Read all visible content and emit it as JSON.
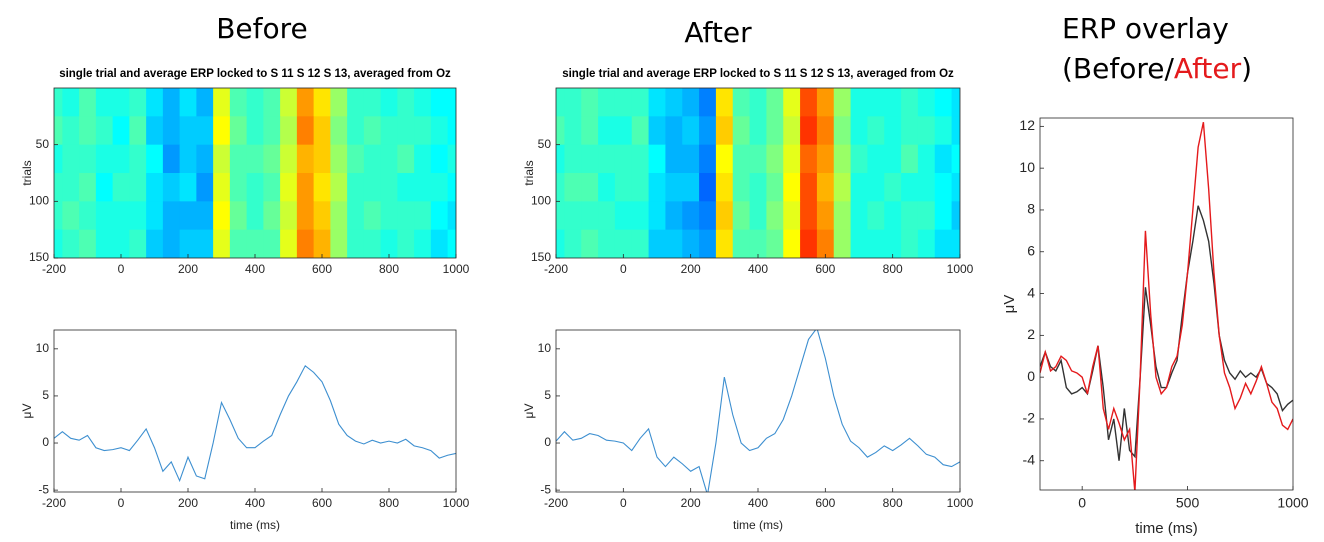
{
  "headings": {
    "before": "Before",
    "after": "After",
    "overlay": [
      "ERP overlay",
      "(Before/",
      "After",
      ")"
    ]
  },
  "chart_data": [
    {
      "type": "heatmap",
      "title": "single trial and average ERP locked to S 11 S 12 S 13, averaged from Oz",
      "ylabel": "trials",
      "x": [
        -200,
        -150,
        -100,
        -50,
        0,
        50,
        100,
        150,
        200,
        250,
        300,
        350,
        400,
        450,
        500,
        550,
        600,
        650,
        700,
        750,
        800,
        850,
        900,
        950,
        1000
      ],
      "y": [
        12.5,
        37.5,
        62.5,
        87.5,
        112.5,
        137.5
      ],
      "values": [
        [
          -3,
          -4,
          -2,
          -4,
          -4,
          -3,
          -6,
          -8,
          -6,
          -8,
          4,
          -2,
          -3,
          -2,
          3,
          9,
          6,
          1,
          -3,
          -3,
          -4,
          -3,
          -4,
          -5,
          -5
        ],
        [
          -2,
          -3,
          -2,
          -3,
          -5,
          -2,
          -7,
          -8,
          -7,
          -7,
          5,
          -1,
          -3,
          -2,
          2,
          10,
          7,
          0,
          -3,
          -2,
          -3,
          -3,
          -3,
          -4,
          -5
        ],
        [
          -4,
          -3,
          -3,
          -4,
          -4,
          -3,
          -5,
          -9,
          -7,
          -8,
          3,
          -2,
          -2,
          -1,
          3,
          8,
          7,
          1,
          -2,
          -3,
          -3,
          -2,
          -4,
          -5,
          -4
        ],
        [
          -3,
          -3,
          -2,
          -5,
          -3,
          -3,
          -6,
          -7,
          -6,
          -9,
          4,
          -2,
          -3,
          -2,
          4,
          9,
          6,
          2,
          -3,
          -3,
          -3,
          -4,
          -4,
          -4,
          -5
        ],
        [
          -3,
          -2,
          -3,
          -4,
          -4,
          -4,
          -6,
          -8,
          -8,
          -8,
          5,
          -1,
          -3,
          -1,
          3,
          9,
          7,
          1,
          -3,
          -2,
          -3,
          -3,
          -3,
          -5,
          -6
        ],
        [
          -4,
          -3,
          -2,
          -4,
          -4,
          -3,
          -7,
          -8,
          -7,
          -7,
          4,
          -2,
          -2,
          -2,
          4,
          10,
          8,
          1,
          -3,
          -3,
          -4,
          -3,
          -4,
          -6,
          -5
        ]
      ],
      "clim": [
        -20,
        20
      ],
      "xlim": [
        -200,
        1000
      ],
      "ylim": [
        150,
        0
      ],
      "xticks": [
        -200,
        0,
        200,
        400,
        600,
        800,
        1000
      ],
      "yticks": [
        50,
        100,
        150
      ]
    },
    {
      "type": "line",
      "xlabel": "time (ms)",
      "ylabel": "μV",
      "x": [
        -200,
        -175,
        -150,
        -125,
        -100,
        -75,
        -50,
        -25,
        0,
        25,
        50,
        75,
        100,
        125,
        150,
        175,
        200,
        225,
        250,
        275,
        300,
        325,
        350,
        375,
        400,
        425,
        450,
        475,
        500,
        525,
        550,
        575,
        600,
        625,
        650,
        675,
        700,
        725,
        750,
        775,
        800,
        825,
        850,
        875,
        900,
        925,
        950,
        975,
        1000
      ],
      "series": [
        {
          "color": "#3d8fd0",
          "values": [
            0.5,
            1.2,
            0.5,
            0.3,
            0.8,
            -0.5,
            -0.8,
            -0.7,
            -0.5,
            -0.8,
            0.3,
            1.5,
            -0.5,
            -3,
            -2,
            -4,
            -1.5,
            -3.5,
            -3.8,
            0,
            4.3,
            2.5,
            0.5,
            -0.5,
            -0.5,
            0.2,
            0.8,
            3,
            5,
            6.5,
            8.2,
            7.5,
            6.5,
            4.5,
            2,
            0.8,
            0.2,
            -0.1,
            0.3,
            0,
            0.2,
            0,
            0.4,
            -0.3,
            -0.5,
            -0.8,
            -1.6,
            -1.3,
            -1.1
          ]
        }
      ],
      "xlim": [
        -200,
        1000
      ],
      "ylim": [
        -5.2,
        12
      ],
      "xticks": [
        -200,
        0,
        200,
        400,
        600,
        800,
        1000
      ],
      "yticks": [
        -5,
        0,
        5,
        10
      ]
    },
    {
      "type": "heatmap",
      "title": "single trial and average ERP locked to S 11 S 12 S 13, averaged from Oz",
      "ylabel": "trials",
      "x": [
        -200,
        -150,
        -100,
        -50,
        0,
        50,
        100,
        150,
        200,
        250,
        300,
        350,
        400,
        450,
        500,
        550,
        600,
        650,
        700,
        750,
        800,
        850,
        900,
        950,
        1000
      ],
      "y": [
        12.5,
        37.5,
        62.5,
        87.5,
        112.5,
        137.5
      ],
      "values": [
        [
          -3,
          -3,
          -2,
          -3,
          -3,
          -3,
          -6,
          -7,
          -8,
          -10,
          6,
          -2,
          -3,
          -1,
          4,
          12,
          9,
          1,
          -4,
          -4,
          -4,
          -3,
          -4,
          -5,
          -6
        ],
        [
          -2,
          -3,
          -2,
          -4,
          -4,
          -2,
          -7,
          -8,
          -7,
          -9,
          7,
          -1,
          -3,
          -1,
          3,
          13,
          10,
          0,
          -4,
          -3,
          -4,
          -3,
          -3,
          -4,
          -6
        ],
        [
          -4,
          -3,
          -3,
          -3,
          -3,
          -3,
          -5,
          -8,
          -8,
          -10,
          5,
          -2,
          -2,
          0,
          4,
          11,
          9,
          1,
          -3,
          -4,
          -4,
          -2,
          -4,
          -6,
          -5
        ],
        [
          -3,
          -2,
          -2,
          -4,
          -3,
          -3,
          -6,
          -7,
          -7,
          -11,
          6,
          -2,
          -3,
          -1,
          5,
          12,
          8,
          2,
          -4,
          -4,
          -3,
          -4,
          -4,
          -5,
          -6
        ],
        [
          -3,
          -3,
          -3,
          -3,
          -4,
          -4,
          -6,
          -8,
          -9,
          -10,
          7,
          -1,
          -3,
          0,
          4,
          12,
          9,
          1,
          -4,
          -3,
          -4,
          -3,
          -3,
          -5,
          -7
        ],
        [
          -4,
          -3,
          -2,
          -3,
          -3,
          -3,
          -7,
          -7,
          -8,
          -9,
          6,
          -2,
          -2,
          -1,
          5,
          13,
          10,
          1,
          -4,
          -4,
          -4,
          -3,
          -4,
          -6,
          -6
        ]
      ],
      "clim": [
        -20,
        20
      ],
      "xlim": [
        -200,
        1000
      ],
      "ylim": [
        150,
        0
      ],
      "xticks": [
        -200,
        0,
        200,
        400,
        600,
        800,
        1000
      ],
      "yticks": [
        50,
        100,
        150
      ]
    },
    {
      "type": "line",
      "xlabel": "time (ms)",
      "ylabel": "μV",
      "x": [
        -200,
        -175,
        -150,
        -125,
        -100,
        -75,
        -50,
        -25,
        0,
        25,
        50,
        75,
        100,
        125,
        150,
        175,
        200,
        225,
        250,
        275,
        300,
        325,
        350,
        375,
        400,
        425,
        450,
        475,
        500,
        525,
        550,
        575,
        600,
        625,
        650,
        675,
        700,
        725,
        750,
        775,
        800,
        825,
        850,
        875,
        900,
        925,
        950,
        975,
        1000
      ],
      "series": [
        {
          "color": "#3d8fd0",
          "values": [
            0.2,
            1.2,
            0.3,
            0.5,
            1,
            0.8,
            0.3,
            0.2,
            0,
            -0.8,
            0.5,
            1.5,
            -1.5,
            -2.5,
            -1.5,
            -2.2,
            -3,
            -2.5,
            -5.5,
            0,
            7,
            3,
            0,
            -0.8,
            -0.5,
            0.5,
            1,
            2.5,
            5,
            8,
            11,
            12.2,
            9,
            5,
            2,
            0.2,
            -0.5,
            -1.5,
            -1,
            -0.3,
            -0.8,
            -0.2,
            0.5,
            -0.3,
            -1.2,
            -1.5,
            -2.3,
            -2.5,
            -2
          ]
        }
      ],
      "xlim": [
        -200,
        1000
      ],
      "ylim": [
        -5.2,
        12
      ],
      "xticks": [
        -200,
        0,
        200,
        400,
        600,
        800,
        1000
      ],
      "yticks": [
        -5,
        0,
        5,
        10
      ]
    },
    {
      "type": "line",
      "xlabel": "time (ms)",
      "ylabel": "μV",
      "x": [
        -200,
        -175,
        -150,
        -125,
        -100,
        -75,
        -50,
        -25,
        0,
        25,
        50,
        75,
        100,
        125,
        150,
        175,
        200,
        225,
        250,
        275,
        300,
        325,
        350,
        375,
        400,
        425,
        450,
        475,
        500,
        525,
        550,
        575,
        600,
        625,
        650,
        675,
        700,
        725,
        750,
        775,
        800,
        825,
        850,
        875,
        900,
        925,
        950,
        975,
        1000
      ],
      "series": [
        {
          "color": "#333333",
          "values": [
            0.5,
            1.2,
            0.5,
            0.3,
            0.8,
            -0.5,
            -0.8,
            -0.7,
            -0.5,
            -0.8,
            0.3,
            1.5,
            -0.5,
            -3,
            -2,
            -4,
            -1.5,
            -3.5,
            -3.8,
            0,
            4.3,
            2.5,
            0.5,
            -0.5,
            -0.5,
            0.2,
            0.8,
            3,
            5,
            6.5,
            8.2,
            7.5,
            6.5,
            4.5,
            2,
            0.8,
            0.2,
            -0.1,
            0.3,
            0,
            0.2,
            0,
            0.4,
            -0.3,
            -0.5,
            -0.8,
            -1.6,
            -1.3,
            -1.1
          ]
        },
        {
          "color": "#e41a1c",
          "values": [
            0.2,
            1.2,
            0.3,
            0.5,
            1,
            0.8,
            0.3,
            0.2,
            0,
            -0.8,
            0.5,
            1.5,
            -1.5,
            -2.5,
            -1.5,
            -2.2,
            -3,
            -2.5,
            -5.5,
            0,
            7,
            3,
            0,
            -0.8,
            -0.5,
            0.5,
            1,
            2.5,
            5,
            8,
            11,
            12.2,
            9,
            5,
            2,
            0.2,
            -0.5,
            -1.5,
            -1,
            -0.3,
            -0.8,
            -0.2,
            0.5,
            -0.3,
            -1.2,
            -1.5,
            -2.3,
            -2.5,
            -2
          ]
        }
      ],
      "xlim": [
        -200,
        1000
      ],
      "ylim": [
        -5.4,
        12.4
      ],
      "xticks": [
        0,
        500,
        1000
      ],
      "yticks": [
        -4,
        -2,
        0,
        2,
        4,
        6,
        8,
        10,
        12
      ]
    }
  ]
}
